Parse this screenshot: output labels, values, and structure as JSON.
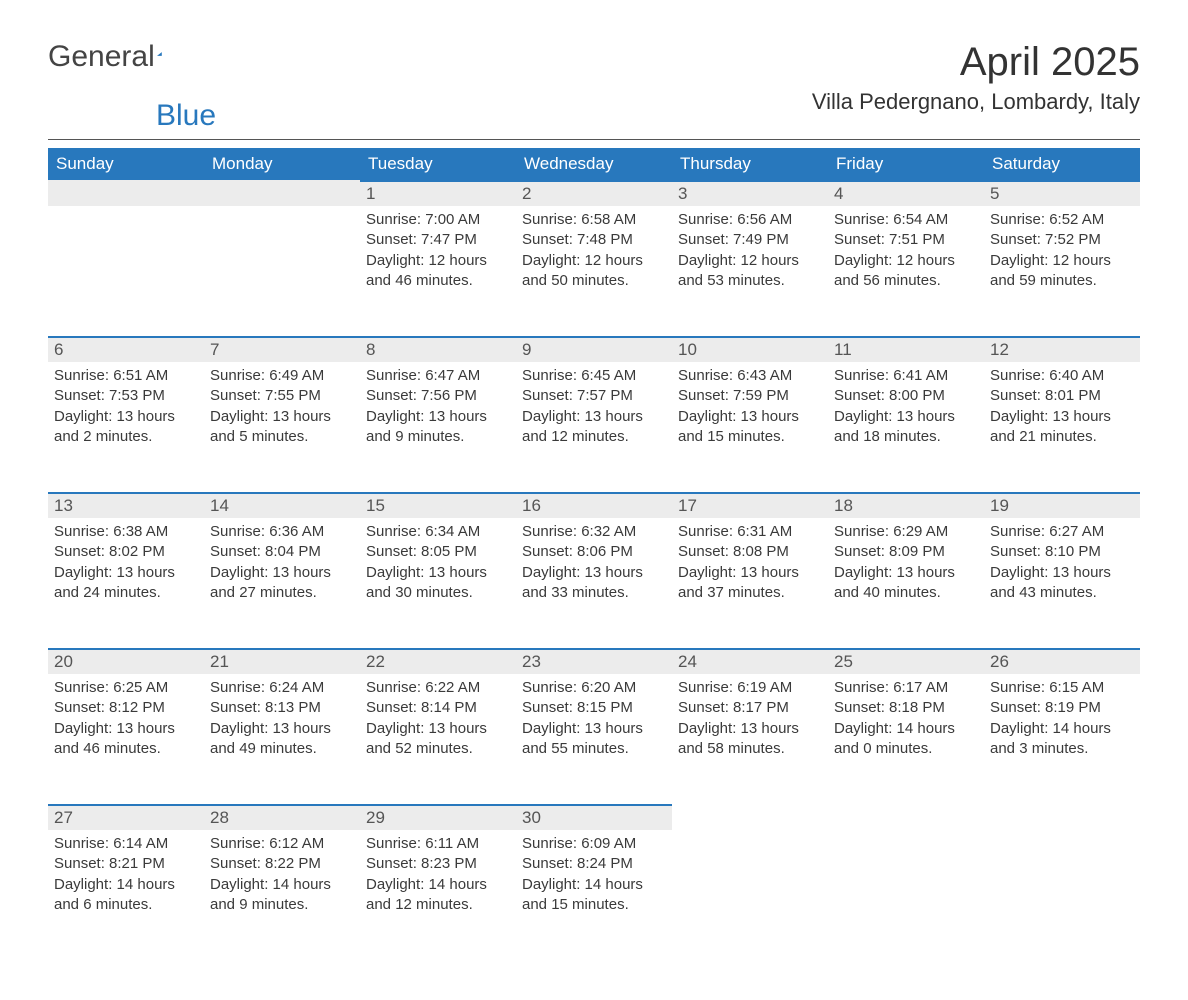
{
  "brand": {
    "name_part1": "General",
    "name_part2": "Blue",
    "accent_color": "#2878bd",
    "text_color": "#444444"
  },
  "title": {
    "month": "April 2025",
    "location": "Villa Pedergnano, Lombardy, Italy"
  },
  "style": {
    "header_bg": "#2878bd",
    "header_text": "#ffffff",
    "daynum_bg": "#ececec",
    "daynum_border": "#2878bd",
    "body_text": "#3a3a3a",
    "page_bg": "#ffffff",
    "hr_color": "#555555",
    "th_fontsize": 17,
    "daynum_fontsize": 17,
    "body_fontsize": 15,
    "month_fontsize": 40,
    "location_fontsize": 22
  },
  "weekdays": [
    "Sunday",
    "Monday",
    "Tuesday",
    "Wednesday",
    "Thursday",
    "Friday",
    "Saturday"
  ],
  "weeks": [
    [
      null,
      null,
      {
        "n": "1",
        "sunrise": "7:00 AM",
        "sunset": "7:47 PM",
        "daylight": "12 hours and 46 minutes."
      },
      {
        "n": "2",
        "sunrise": "6:58 AM",
        "sunset": "7:48 PM",
        "daylight": "12 hours and 50 minutes."
      },
      {
        "n": "3",
        "sunrise": "6:56 AM",
        "sunset": "7:49 PM",
        "daylight": "12 hours and 53 minutes."
      },
      {
        "n": "4",
        "sunrise": "6:54 AM",
        "sunset": "7:51 PM",
        "daylight": "12 hours and 56 minutes."
      },
      {
        "n": "5",
        "sunrise": "6:52 AM",
        "sunset": "7:52 PM",
        "daylight": "12 hours and 59 minutes."
      }
    ],
    [
      {
        "n": "6",
        "sunrise": "6:51 AM",
        "sunset": "7:53 PM",
        "daylight": "13 hours and 2 minutes."
      },
      {
        "n": "7",
        "sunrise": "6:49 AM",
        "sunset": "7:55 PM",
        "daylight": "13 hours and 5 minutes."
      },
      {
        "n": "8",
        "sunrise": "6:47 AM",
        "sunset": "7:56 PM",
        "daylight": "13 hours and 9 minutes."
      },
      {
        "n": "9",
        "sunrise": "6:45 AM",
        "sunset": "7:57 PM",
        "daylight": "13 hours and 12 minutes."
      },
      {
        "n": "10",
        "sunrise": "6:43 AM",
        "sunset": "7:59 PM",
        "daylight": "13 hours and 15 minutes."
      },
      {
        "n": "11",
        "sunrise": "6:41 AM",
        "sunset": "8:00 PM",
        "daylight": "13 hours and 18 minutes."
      },
      {
        "n": "12",
        "sunrise": "6:40 AM",
        "sunset": "8:01 PM",
        "daylight": "13 hours and 21 minutes."
      }
    ],
    [
      {
        "n": "13",
        "sunrise": "6:38 AM",
        "sunset": "8:02 PM",
        "daylight": "13 hours and 24 minutes."
      },
      {
        "n": "14",
        "sunrise": "6:36 AM",
        "sunset": "8:04 PM",
        "daylight": "13 hours and 27 minutes."
      },
      {
        "n": "15",
        "sunrise": "6:34 AM",
        "sunset": "8:05 PM",
        "daylight": "13 hours and 30 minutes."
      },
      {
        "n": "16",
        "sunrise": "6:32 AM",
        "sunset": "8:06 PM",
        "daylight": "13 hours and 33 minutes."
      },
      {
        "n": "17",
        "sunrise": "6:31 AM",
        "sunset": "8:08 PM",
        "daylight": "13 hours and 37 minutes."
      },
      {
        "n": "18",
        "sunrise": "6:29 AM",
        "sunset": "8:09 PM",
        "daylight": "13 hours and 40 minutes."
      },
      {
        "n": "19",
        "sunrise": "6:27 AM",
        "sunset": "8:10 PM",
        "daylight": "13 hours and 43 minutes."
      }
    ],
    [
      {
        "n": "20",
        "sunrise": "6:25 AM",
        "sunset": "8:12 PM",
        "daylight": "13 hours and 46 minutes."
      },
      {
        "n": "21",
        "sunrise": "6:24 AM",
        "sunset": "8:13 PM",
        "daylight": "13 hours and 49 minutes."
      },
      {
        "n": "22",
        "sunrise": "6:22 AM",
        "sunset": "8:14 PM",
        "daylight": "13 hours and 52 minutes."
      },
      {
        "n": "23",
        "sunrise": "6:20 AM",
        "sunset": "8:15 PM",
        "daylight": "13 hours and 55 minutes."
      },
      {
        "n": "24",
        "sunrise": "6:19 AM",
        "sunset": "8:17 PM",
        "daylight": "13 hours and 58 minutes."
      },
      {
        "n": "25",
        "sunrise": "6:17 AM",
        "sunset": "8:18 PM",
        "daylight": "14 hours and 0 minutes."
      },
      {
        "n": "26",
        "sunrise": "6:15 AM",
        "sunset": "8:19 PM",
        "daylight": "14 hours and 3 minutes."
      }
    ],
    [
      {
        "n": "27",
        "sunrise": "6:14 AM",
        "sunset": "8:21 PM",
        "daylight": "14 hours and 6 minutes."
      },
      {
        "n": "28",
        "sunrise": "6:12 AM",
        "sunset": "8:22 PM",
        "daylight": "14 hours and 9 minutes."
      },
      {
        "n": "29",
        "sunrise": "6:11 AM",
        "sunset": "8:23 PM",
        "daylight": "14 hours and 12 minutes."
      },
      {
        "n": "30",
        "sunrise": "6:09 AM",
        "sunset": "8:24 PM",
        "daylight": "14 hours and 15 minutes."
      },
      null,
      null,
      null
    ]
  ],
  "labels": {
    "sunrise_prefix": "Sunrise: ",
    "sunset_prefix": "Sunset: ",
    "daylight_prefix": "Daylight: "
  }
}
